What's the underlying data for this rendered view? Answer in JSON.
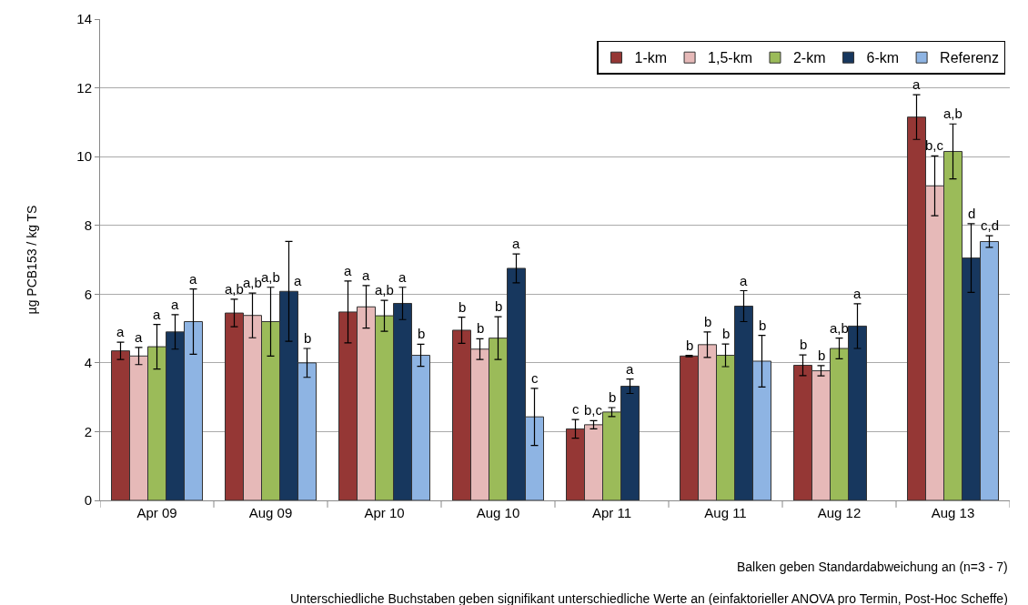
{
  "chart_data": {
    "type": "bar",
    "ylabel": "µg PCB153 / kg TS",
    "categories": [
      "Apr 09",
      "Aug 09",
      "Apr 10",
      "Aug 10",
      "Apr 11",
      "Aug 11",
      "Aug 12",
      "Aug 13"
    ],
    "series": [
      {
        "name": "1-km",
        "color": "#953735",
        "values": [
          4.35,
          5.45,
          5.48,
          4.95,
          2.08,
          4.2,
          3.93,
          11.15
        ],
        "errors": [
          0.25,
          0.4,
          0.9,
          0.38,
          0.27,
          0.02,
          0.3,
          0.65
        ],
        "value_labels": [
          "a",
          "a,b",
          "a",
          "b",
          "c",
          "b",
          "b",
          "a"
        ]
      },
      {
        "name": "1,5-km",
        "color": "#e6b9b8",
        "values": [
          4.2,
          5.38,
          5.63,
          4.4,
          2.2,
          4.53,
          3.77,
          9.15
        ],
        "errors": [
          0.25,
          0.65,
          0.62,
          0.3,
          0.12,
          0.37,
          0.15,
          0.87
        ],
        "value_labels": [
          "a",
          "a,b",
          "a",
          "b",
          "b,c",
          "b",
          "b",
          "b,c"
        ]
      },
      {
        "name": "2-km",
        "color": "#9bbb59",
        "values": [
          4.47,
          5.2,
          5.37,
          4.72,
          2.57,
          4.22,
          4.42,
          10.15
        ],
        "errors": [
          0.65,
          1.0,
          0.45,
          0.62,
          0.13,
          0.33,
          0.3,
          0.8
        ],
        "value_labels": [
          "a",
          "a,b",
          "a,b",
          "b",
          "b",
          "b",
          "a,b",
          "a,b"
        ]
      },
      {
        "name": "6-km",
        "color": "#17375e",
        "values": [
          4.9,
          6.08,
          5.73,
          6.75,
          3.32,
          5.65,
          5.07,
          7.05
        ],
        "errors": [
          0.5,
          1.45,
          0.47,
          0.42,
          0.21,
          0.45,
          0.65,
          1.0
        ],
        "value_labels": [
          "a",
          "a",
          "a",
          "a",
          "a",
          "a",
          "a",
          "d"
        ]
      },
      {
        "name": "Referenz",
        "color": "#8eb4e3",
        "values": [
          5.2,
          4.0,
          4.22,
          2.43,
          null,
          4.05,
          null,
          7.53
        ],
        "errors": [
          0.95,
          0.42,
          0.32,
          0.83,
          null,
          0.75,
          null,
          0.17
        ],
        "value_labels": [
          "a",
          "b",
          "b",
          "c",
          null,
          "b",
          null,
          "c,d"
        ]
      }
    ],
    "ylim": [
      0,
      14
    ],
    "yticks": [
      0,
      2,
      4,
      6,
      8,
      10,
      12,
      14
    ],
    "grid": "y",
    "legend": "top right",
    "annotations": [
      "Balken geben Standardabweichung an (n=3 - 7)",
      "Unterschiedliche Buchstaben geben signifikant unterschiedliche Werte an (einfaktorieller ANOVA pro Termin, Post-Hoc Scheffe)"
    ]
  }
}
